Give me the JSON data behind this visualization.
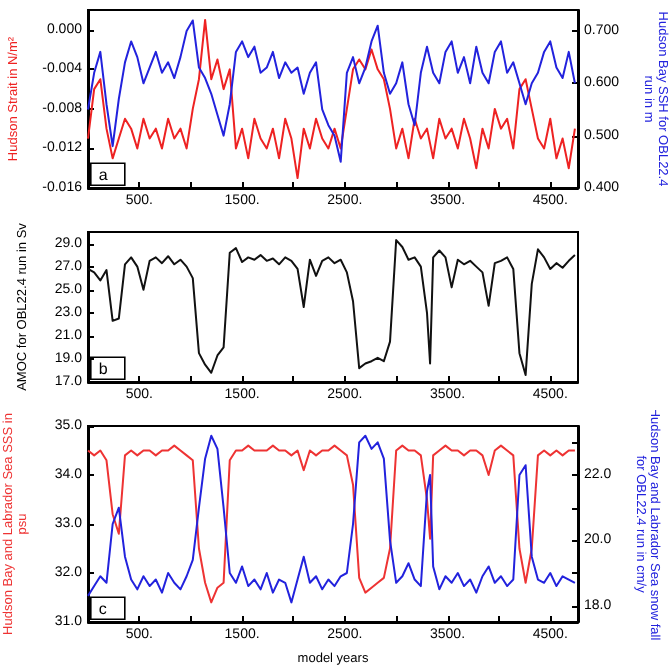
{
  "chart_data": [
    {
      "type": "line",
      "ylabel": "Hudson Strait in N/m²",
      "y2label": "Hudson Bay SSH for OBL22.4 run in m",
      "annotations": [
        "a"
      ],
      "x": [
        0,
        60,
        120,
        180,
        240,
        300,
        360,
        420,
        480,
        540,
        600,
        660,
        720,
        780,
        840,
        900,
        960,
        1020,
        1080,
        1140,
        1200,
        1260,
        1320,
        1380,
        1440,
        1500,
        1560,
        1620,
        1680,
        1740,
        1800,
        1860,
        1920,
        1980,
        2040,
        2100,
        2160,
        2220,
        2280,
        2340,
        2400,
        2460,
        2520,
        2580,
        2640,
        2700,
        2760,
        2820,
        2880,
        2940,
        3000,
        3060,
        3120,
        3180,
        3240,
        3300,
        3360,
        3420,
        3480,
        3540,
        3600,
        3660,
        3720,
        3780,
        3840,
        3900,
        3960,
        4020,
        4080,
        4140,
        4200,
        4260,
        4320,
        4380,
        4440,
        4500,
        4560,
        4620,
        4680,
        4740
      ],
      "series": [
        {
          "color": "#ee2222",
          "values": [
            -0.011,
            -0.006,
            -0.005,
            -0.01,
            -0.013,
            -0.011,
            -0.009,
            -0.01,
            -0.012,
            -0.009,
            -0.011,
            -0.01,
            -0.012,
            -0.009,
            -0.011,
            -0.01,
            -0.012,
            -0.008,
            -0.005,
            0.001,
            -0.005,
            -0.003,
            -0.006,
            -0.004,
            -0.012,
            -0.01,
            -0.013,
            -0.009,
            -0.011,
            -0.012,
            -0.01,
            -0.013,
            -0.009,
            -0.011,
            -0.015,
            -0.01,
            -0.012,
            -0.009,
            -0.011,
            -0.012,
            -0.01,
            -0.012,
            -0.008,
            -0.004,
            -0.003,
            -0.004,
            -0.002,
            -0.004,
            -0.005,
            -0.008,
            -0.012,
            -0.01,
            -0.013,
            -0.009,
            -0.011,
            -0.01,
            -0.013,
            -0.009,
            -0.011,
            -0.01,
            -0.012,
            -0.009,
            -0.011,
            -0.014,
            -0.01,
            -0.012,
            -0.008,
            -0.01,
            -0.009,
            -0.012,
            -0.006,
            -0.005,
            -0.008,
            -0.011,
            -0.012,
            -0.009,
            -0.013,
            -0.011,
            -0.014,
            -0.01
          ]
        },
        {
          "color": "#2222dd",
          "axis": "y2",
          "values": [
            0.55,
            0.62,
            0.66,
            0.56,
            0.48,
            0.57,
            0.64,
            0.68,
            0.65,
            0.6,
            0.63,
            0.66,
            0.62,
            0.64,
            0.61,
            0.65,
            0.7,
            0.72,
            0.63,
            0.61,
            0.58,
            0.54,
            0.5,
            0.56,
            0.66,
            0.68,
            0.65,
            0.67,
            0.62,
            0.63,
            0.66,
            0.61,
            0.64,
            0.62,
            0.63,
            0.58,
            0.62,
            0.64,
            0.55,
            0.52,
            0.5,
            0.45,
            0.62,
            0.65,
            0.6,
            0.63,
            0.68,
            0.71,
            0.62,
            0.58,
            0.6,
            0.64,
            0.56,
            0.52,
            0.62,
            0.67,
            0.62,
            0.6,
            0.66,
            0.68,
            0.62,
            0.65,
            0.6,
            0.67,
            0.62,
            0.6,
            0.66,
            0.68,
            0.62,
            0.64,
            0.6,
            0.56,
            0.6,
            0.62,
            0.66,
            0.68,
            0.63,
            0.61,
            0.66,
            0.6
          ]
        }
      ],
      "xlim": [
        0,
        4770
      ],
      "xticks": [
        {
          "value": 500,
          "label": "500."
        },
        {
          "value": 1000,
          "label": null
        },
        {
          "value": 1500,
          "label": "1500."
        },
        {
          "value": 2000,
          "label": null
        },
        {
          "value": 2500,
          "label": "2500."
        },
        {
          "value": 3000,
          "label": null
        },
        {
          "value": 3500,
          "label": "3500."
        },
        {
          "value": 4000,
          "label": null
        },
        {
          "value": 4500,
          "label": "4500."
        }
      ],
      "ylim": [
        -0.016,
        0.002
      ],
      "yticks": [
        {
          "value": -0.016,
          "label": "-0.016"
        },
        {
          "value": -0.012,
          "label": "-0.012"
        },
        {
          "value": -0.008,
          "label": "-0.008"
        },
        {
          "value": -0.004,
          "label": "-0.004"
        },
        {
          "value": 0,
          "label": "0.000"
        }
      ],
      "y2lim": [
        0.4,
        0.74
      ],
      "y2ticks": [
        {
          "value": 0.4,
          "label": "0.400"
        },
        {
          "value": 0.5,
          "label": "0.500"
        },
        {
          "value": 0.6,
          "label": "0.600"
        },
        {
          "value": 0.7,
          "label": "0.700"
        }
      ]
    },
    {
      "type": "line",
      "ylabel": "AMOC for OBL22.4 run in Sv",
      "annotations": [
        "b"
      ],
      "x": [
        0,
        60,
        120,
        180,
        240,
        300,
        360,
        420,
        480,
        540,
        600,
        660,
        720,
        780,
        840,
        900,
        960,
        1020,
        1080,
        1140,
        1200,
        1260,
        1320,
        1380,
        1440,
        1500,
        1560,
        1620,
        1680,
        1740,
        1800,
        1860,
        1920,
        1980,
        2040,
        2100,
        2160,
        2220,
        2280,
        2340,
        2400,
        2460,
        2520,
        2580,
        2640,
        2700,
        2760,
        2820,
        2880,
        2940,
        3000,
        3060,
        3120,
        3180,
        3240,
        3300,
        3330,
        3360,
        3420,
        3480,
        3540,
        3600,
        3660,
        3720,
        3780,
        3840,
        3900,
        3960,
        4020,
        4080,
        4140,
        4200,
        4260,
        4320,
        4380,
        4440,
        4500,
        4560,
        4620,
        4680,
        4740
      ],
      "series": [
        {
          "color": "#111111",
          "values": [
            26.8,
            26.5,
            25.8,
            26.7,
            22.3,
            22.5,
            27.2,
            27.8,
            27.0,
            25.0,
            27.5,
            27.8,
            27.3,
            27.9,
            27.2,
            27.6,
            27.0,
            26.0,
            19.5,
            18.5,
            17.8,
            19.3,
            20.0,
            28.2,
            28.6,
            27.4,
            27.8,
            27.6,
            28.0,
            27.5,
            27.7,
            27.2,
            27.8,
            27.5,
            26.8,
            23.5,
            27.6,
            26.2,
            27.5,
            27.8,
            27.3,
            27.6,
            26.5,
            24.0,
            18.2,
            18.6,
            18.8,
            19.1,
            18.8,
            20.5,
            29.3,
            28.7,
            27.6,
            27.8,
            27.0,
            23.0,
            18.6,
            27.8,
            28.4,
            27.8,
            25.2,
            27.6,
            27.2,
            27.5,
            27.0,
            26.5,
            23.6,
            27.3,
            27.5,
            27.8,
            26.8,
            19.5,
            17.6,
            25.5,
            28.5,
            27.8,
            26.8,
            27.3,
            26.9,
            27.5,
            28.0
          ]
        }
      ],
      "xlim": [
        0,
        4770
      ],
      "xticks": [
        {
          "value": 500,
          "label": "500."
        },
        {
          "value": 1000,
          "label": null
        },
        {
          "value": 1500,
          "label": "1500."
        },
        {
          "value": 2000,
          "label": null
        },
        {
          "value": 2500,
          "label": "2500."
        },
        {
          "value": 3000,
          "label": null
        },
        {
          "value": 3500,
          "label": "3500."
        },
        {
          "value": 4000,
          "label": null
        },
        {
          "value": 4500,
          "label": "4500."
        }
      ],
      "ylim": [
        17,
        30
      ],
      "yticks": [
        {
          "value": 17,
          "label": "17.0"
        },
        {
          "value": 19,
          "label": "19.0"
        },
        {
          "value": 21,
          "label": "21.0"
        },
        {
          "value": 23,
          "label": "23.0"
        },
        {
          "value": 25,
          "label": "25.0"
        },
        {
          "value": 27,
          "label": "27.0"
        },
        {
          "value": 29,
          "label": "29.0"
        }
      ]
    },
    {
      "type": "line",
      "xlabel": "model years",
      "ylabel": "Hudson Bay and Labrador Sea SSS in psu",
      "y2label": "Hudson Bay and Labrador Sea snow fall for OBL22.4 run in cm/y",
      "annotations": [
        "c"
      ],
      "x": [
        0,
        60,
        120,
        180,
        240,
        300,
        360,
        420,
        480,
        540,
        600,
        660,
        720,
        780,
        840,
        900,
        960,
        1020,
        1080,
        1140,
        1200,
        1260,
        1320,
        1380,
        1440,
        1500,
        1560,
        1620,
        1680,
        1740,
        1800,
        1860,
        1920,
        1980,
        2040,
        2100,
        2160,
        2220,
        2280,
        2340,
        2400,
        2460,
        2520,
        2580,
        2640,
        2700,
        2760,
        2820,
        2880,
        2940,
        3000,
        3060,
        3120,
        3180,
        3240,
        3300,
        3330,
        3360,
        3420,
        3480,
        3540,
        3600,
        3660,
        3720,
        3780,
        3840,
        3900,
        3960,
        4020,
        4080,
        4140,
        4200,
        4260,
        4320,
        4380,
        4440,
        4500,
        4560,
        4620,
        4680,
        4740
      ],
      "series": [
        {
          "color": "#ee3333",
          "values": [
            34.5,
            34.4,
            34.5,
            34.3,
            33.2,
            32.8,
            34.4,
            34.5,
            34.4,
            34.5,
            34.5,
            34.4,
            34.5,
            34.5,
            34.6,
            34.5,
            34.4,
            34.3,
            32.5,
            31.8,
            31.4,
            31.7,
            31.8,
            34.3,
            34.5,
            34.5,
            34.6,
            34.5,
            34.5,
            34.5,
            34.6,
            34.5,
            34.5,
            34.4,
            34.5,
            34.1,
            34.5,
            34.4,
            34.5,
            34.5,
            34.6,
            34.5,
            34.4,
            33.8,
            31.9,
            31.6,
            31.7,
            31.8,
            31.9,
            32.5,
            34.5,
            34.6,
            34.5,
            34.5,
            34.4,
            33.5,
            32.7,
            34.4,
            34.5,
            34.6,
            34.5,
            34.5,
            34.4,
            34.5,
            34.5,
            34.4,
            34.0,
            34.5,
            34.6,
            34.5,
            34.4,
            32.5,
            31.8,
            32.5,
            34.4,
            34.5,
            34.4,
            34.5,
            34.4,
            34.5,
            34.5
          ]
        },
        {
          "color": "#2222dd",
          "axis": "y2",
          "values": [
            18.3,
            18.6,
            18.9,
            18.7,
            20.5,
            21.0,
            19.5,
            18.8,
            18.5,
            18.9,
            18.6,
            18.8,
            18.4,
            19.0,
            18.7,
            18.5,
            18.9,
            19.4,
            21.0,
            22.5,
            23.2,
            22.8,
            21.0,
            19.0,
            18.7,
            19.2,
            18.6,
            18.8,
            18.5,
            19.0,
            18.4,
            18.8,
            18.7,
            18.1,
            18.8,
            19.5,
            18.7,
            18.9,
            18.5,
            18.8,
            18.6,
            18.9,
            19.0,
            20.5,
            23.0,
            23.2,
            22.8,
            23.0,
            22.5,
            20.0,
            18.7,
            18.9,
            19.3,
            18.8,
            18.6,
            21.5,
            22.0,
            19.2,
            18.5,
            18.9,
            18.7,
            19.0,
            18.6,
            18.8,
            18.4,
            18.9,
            19.2,
            18.7,
            18.9,
            18.6,
            18.8,
            22.0,
            22.3,
            19.5,
            18.8,
            18.7,
            19.0,
            18.6,
            18.9,
            18.8,
            18.7
          ]
        }
      ],
      "xlim": [
        0,
        4770
      ],
      "xticks": [
        {
          "value": 500,
          "label": "500."
        },
        {
          "value": 1000,
          "label": null
        },
        {
          "value": 1500,
          "label": "1500."
        },
        {
          "value": 2000,
          "label": null
        },
        {
          "value": 2500,
          "label": "2500."
        },
        {
          "value": 3000,
          "label": null
        },
        {
          "value": 3500,
          "label": "3500."
        },
        {
          "value": 4000,
          "label": null
        },
        {
          "value": 4500,
          "label": "4500."
        }
      ],
      "ylim": [
        31,
        35
      ],
      "yticks": [
        {
          "value": 31,
          "label": "31.0"
        },
        {
          "value": 32,
          "label": "32.0"
        },
        {
          "value": 33,
          "label": "33.0"
        },
        {
          "value": 34,
          "label": "34.0"
        },
        {
          "value": 35,
          "label": "35.0"
        }
      ],
      "y2lim": [
        17.5,
        23.5
      ],
      "y2ticks": [
        {
          "value": 18,
          "label": "18.0"
        },
        {
          "value": 19,
          "label": null
        },
        {
          "value": 20,
          "label": "20.0"
        },
        {
          "value": 21,
          "label": null
        },
        {
          "value": 22,
          "label": "22.0"
        },
        {
          "value": 23,
          "label": null
        }
      ]
    }
  ]
}
